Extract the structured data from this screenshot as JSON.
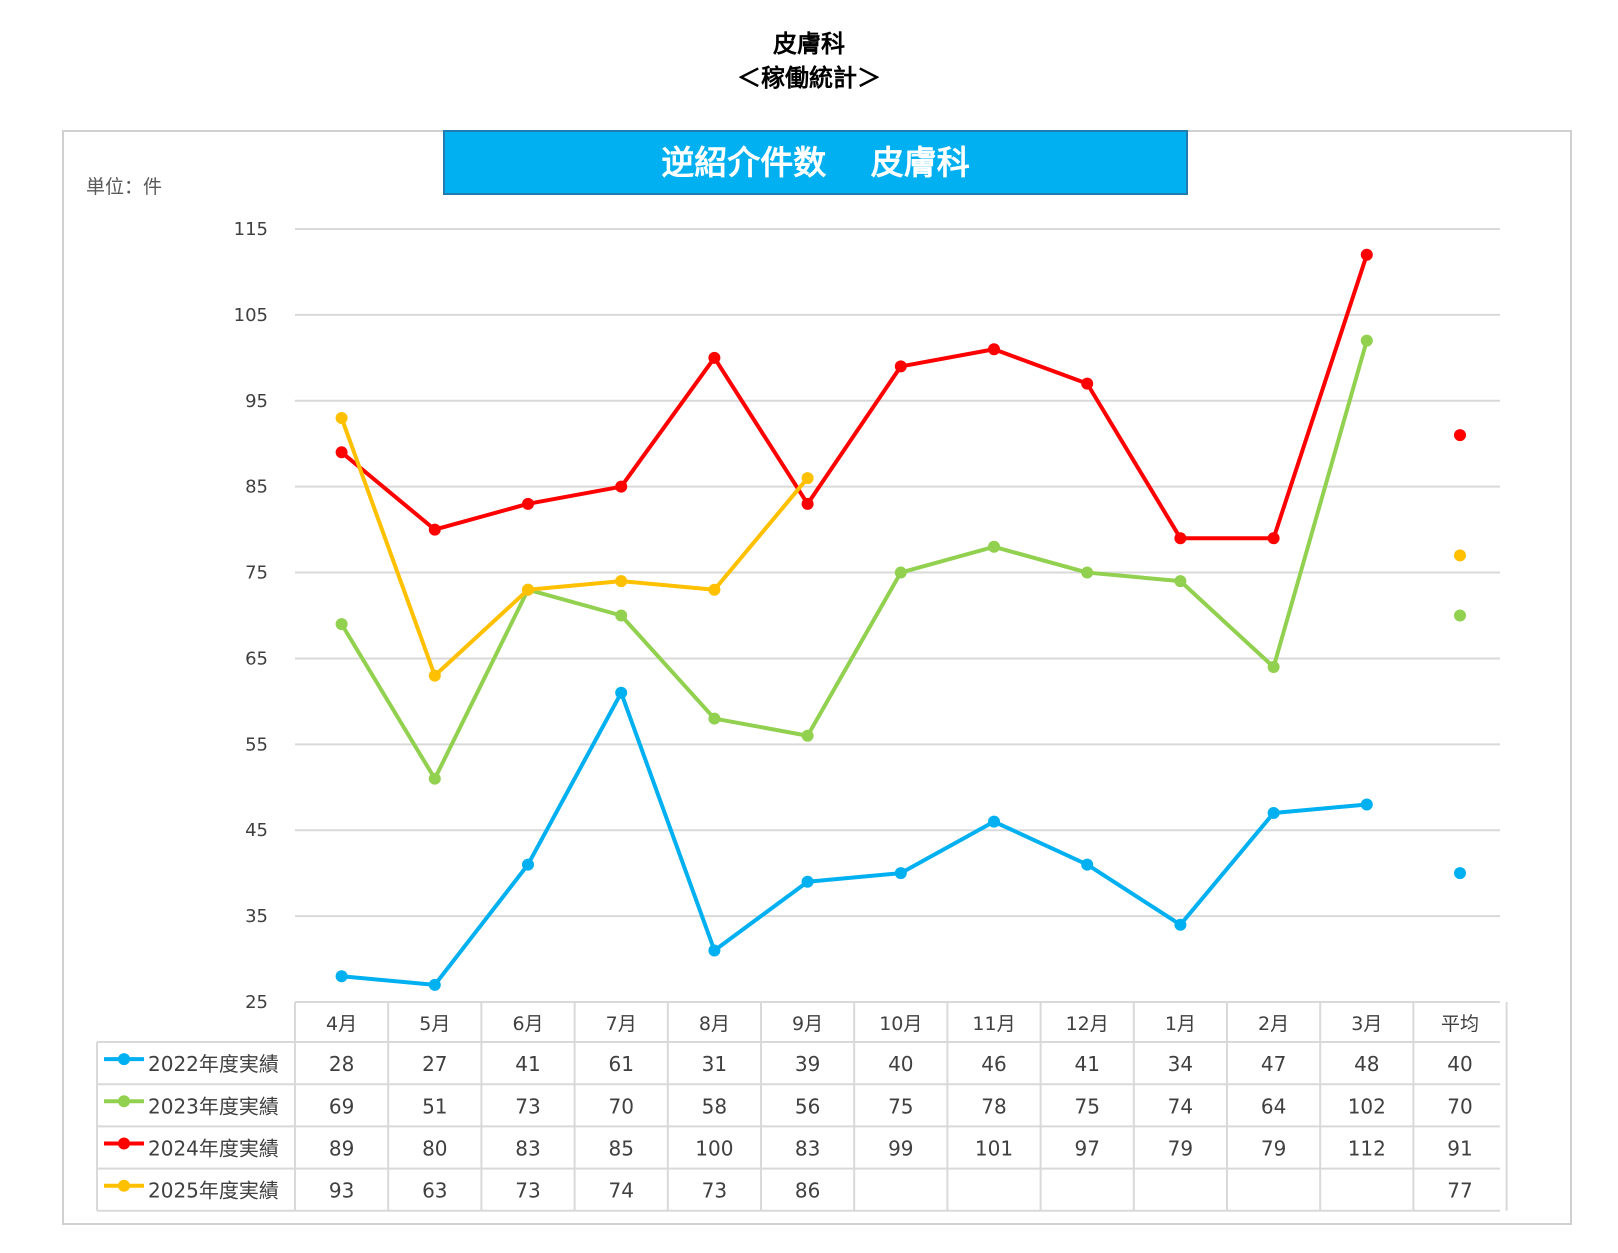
{
  "page": {
    "title_line1": "皮膚科",
    "title_line2": "＜稼働統計＞"
  },
  "chart_banner": "逆紹介件数　 皮膚科",
  "unit_label": "単位：件",
  "colors": {
    "2022": "#00b0f0",
    "2023": "#92d050",
    "2024": "#ff0000",
    "2025": "#ffc000",
    "grid": "#d9d9d9",
    "banner": "#00b0f0"
  },
  "chart_data": {
    "type": "line",
    "title": "逆紹介件数　 皮膚科",
    "ylabel": "単位：件",
    "ylim": [
      25,
      115
    ],
    "yticks": [
      25,
      35,
      45,
      55,
      65,
      75,
      85,
      95,
      105,
      115
    ],
    "categories": [
      "4月",
      "5月",
      "6月",
      "7月",
      "8月",
      "9月",
      "10月",
      "11月",
      "12月",
      "1月",
      "2月",
      "3月"
    ],
    "average_label": "平均",
    "series": [
      {
        "name": "2022年度実績",
        "color": "#00b0f0",
        "values": [
          28,
          27,
          41,
          61,
          31,
          39,
          40,
          46,
          41,
          34,
          47,
          48
        ],
        "average": 40
      },
      {
        "name": "2023年度実績",
        "color": "#92d050",
        "values": [
          69,
          51,
          73,
          70,
          58,
          56,
          75,
          78,
          75,
          74,
          64,
          102
        ],
        "average": 70
      },
      {
        "name": "2024年度実績",
        "color": "#ff0000",
        "values": [
          89,
          80,
          83,
          85,
          100,
          83,
          99,
          101,
          97,
          79,
          79,
          112
        ],
        "average": 91
      },
      {
        "name": "2025年度実績",
        "color": "#ffc000",
        "values": [
          93,
          63,
          73,
          74,
          73,
          86,
          null,
          null,
          null,
          null,
          null,
          null
        ],
        "average": 77
      }
    ]
  }
}
